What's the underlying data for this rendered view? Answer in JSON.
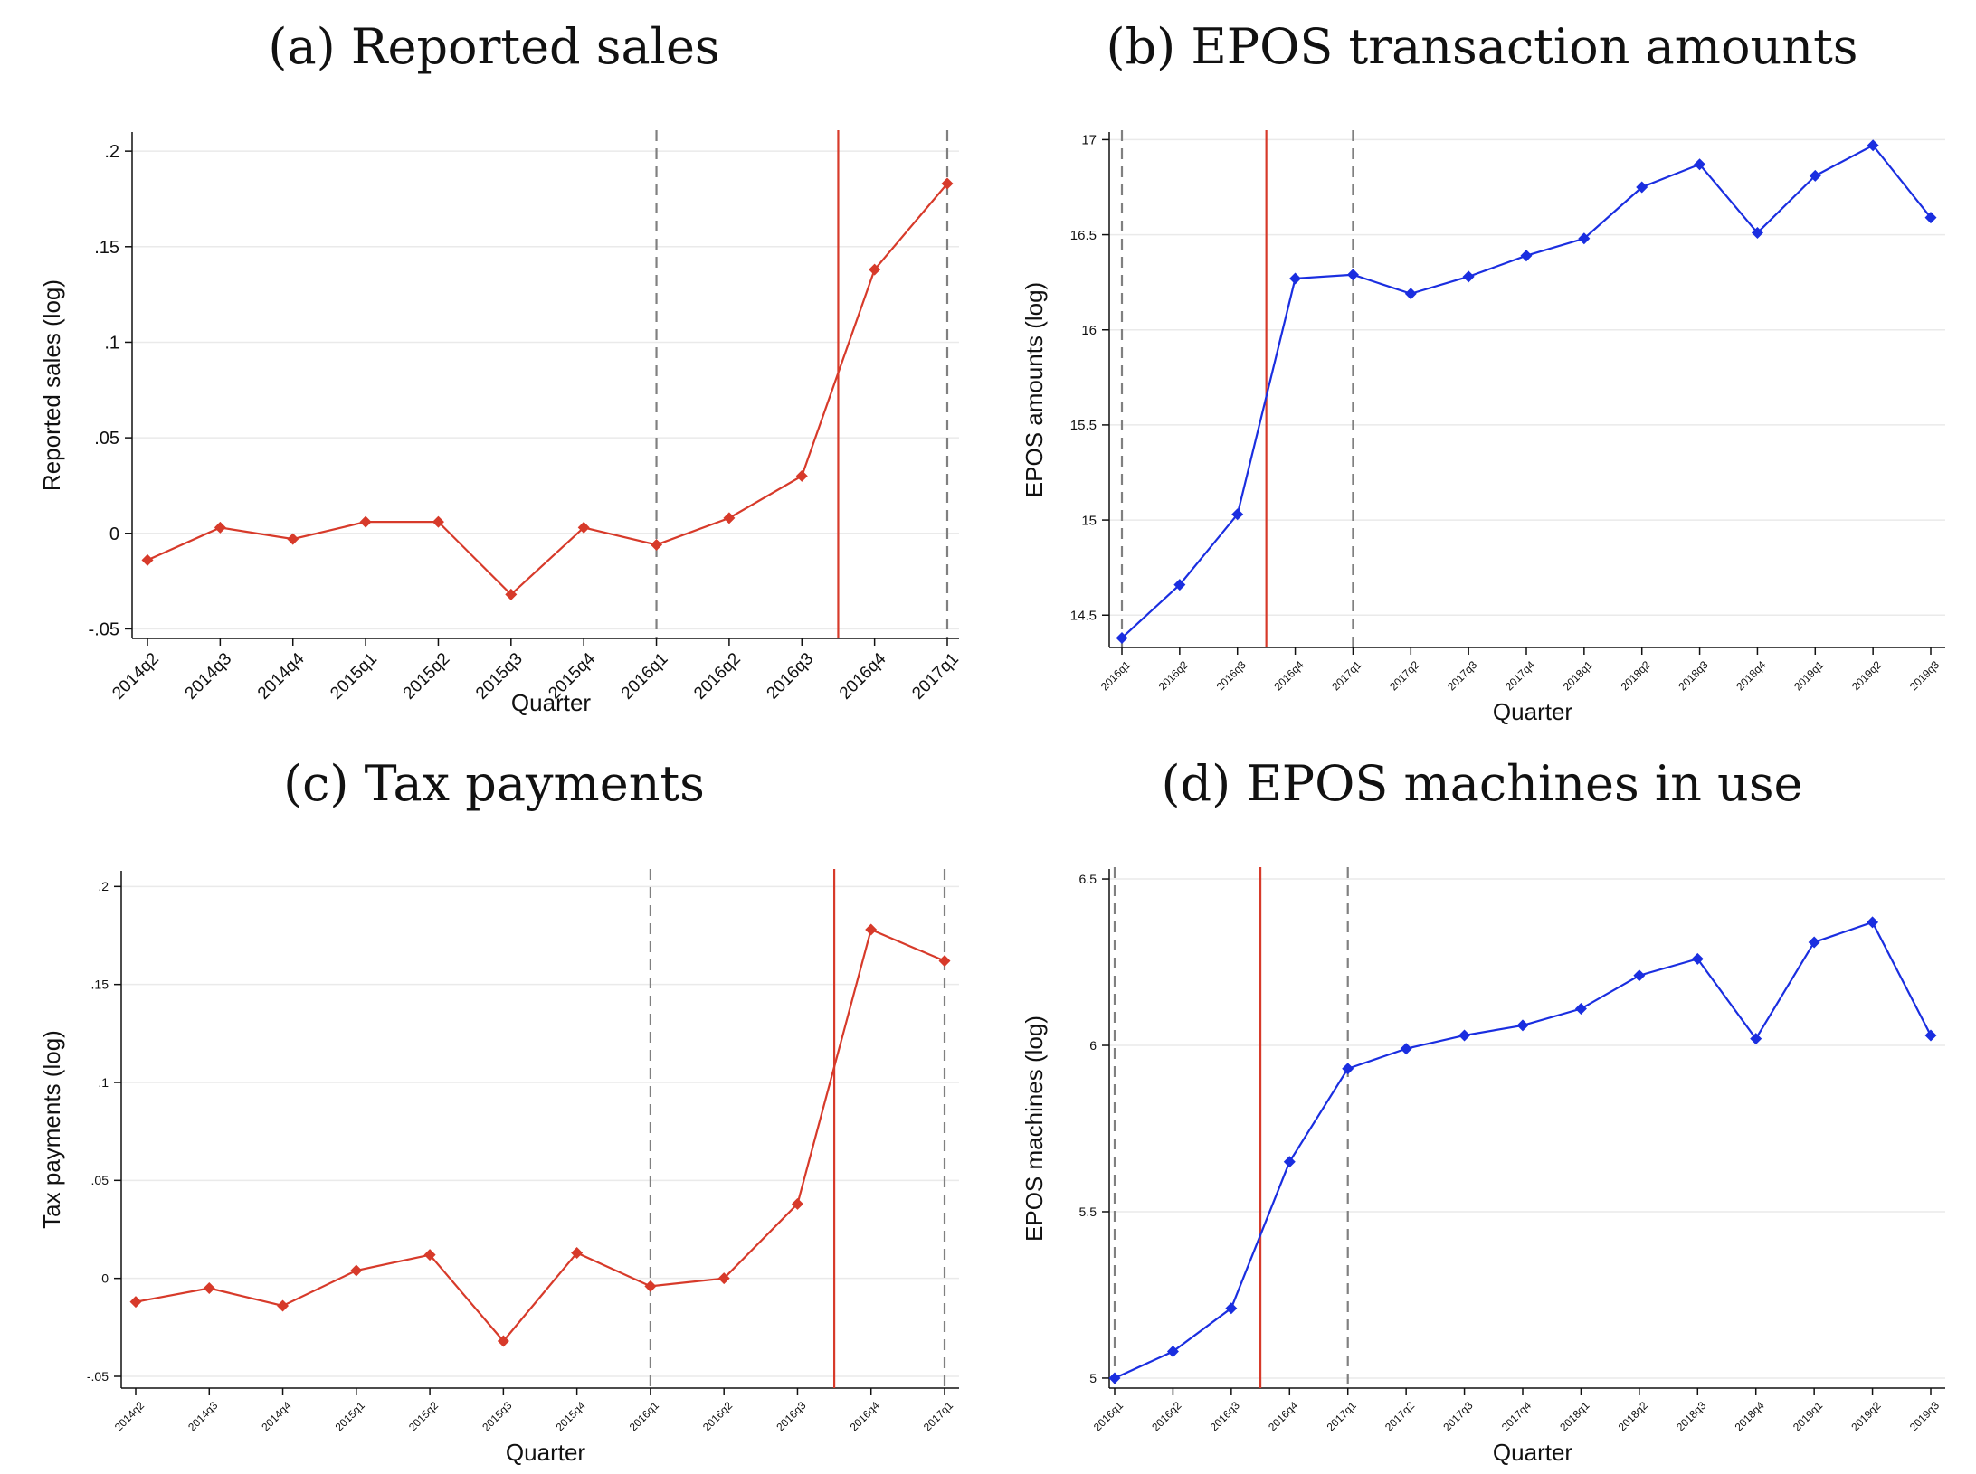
{
  "chart_data": [
    {
      "type": "line",
      "title": "(a) Reported sales",
      "xlabel": "Quarter",
      "ylabel": "Reported sales (log)",
      "categories": [
        "2014q2",
        "2014q3",
        "2014q4",
        "2015q1",
        "2015q2",
        "2015q3",
        "2015q4",
        "2016q1",
        "2016q2",
        "2016q3",
        "2016q4",
        "2017q1"
      ],
      "series": [
        {
          "values": [
            -0.014,
            0.003,
            -0.003,
            0.006,
            0.006,
            -0.032,
            0.003,
            -0.006,
            0.008,
            0.03,
            0.138,
            0.183
          ],
          "color": "#d73a2a"
        }
      ],
      "ylim": [
        -0.055,
        0.21
      ],
      "yticks": [
        -0.05,
        0,
        0.05,
        0.1,
        0.15,
        0.2
      ],
      "ytick_labels": [
        "-.05",
        "0",
        ".05",
        ".1",
        ".15",
        ".2"
      ],
      "vlines": [
        {
          "x": 7,
          "style": "dashed",
          "color": "#808080"
        },
        {
          "x": 9.5,
          "style": "solid",
          "color": "#d73a2a"
        },
        {
          "x": 11,
          "style": "dashed",
          "color": "#808080"
        }
      ],
      "grid": true
    },
    {
      "type": "line",
      "title": "(b) EPOS transaction amounts",
      "xlabel": "Quarter",
      "ylabel": "EPOS amounts (log)",
      "categories": [
        "2016q1",
        "2016q2",
        "2016q3",
        "2016q4",
        "2017q1",
        "2017q2",
        "2017q3",
        "2017q4",
        "2018q1",
        "2018q2",
        "2018q3",
        "2018q4",
        "2019q1",
        "2019q2",
        "2019q3"
      ],
      "series": [
        {
          "values": [
            14.38,
            14.66,
            15.03,
            16.27,
            16.29,
            16.19,
            16.28,
            16.39,
            16.48,
            16.75,
            16.87,
            16.51,
            16.81,
            16.97,
            16.59
          ],
          "color": "#1a2ee0"
        }
      ],
      "ylim": [
        14.33,
        17.04
      ],
      "yticks": [
        14.5,
        15,
        15.5,
        16,
        16.5,
        17
      ],
      "ytick_labels": [
        "14.5",
        "15",
        "15.5",
        "16",
        "16.5",
        "17"
      ],
      "vlines": [
        {
          "x": 0,
          "style": "dashed",
          "color": "#808080"
        },
        {
          "x": 2.5,
          "style": "solid",
          "color": "#d73a2a"
        },
        {
          "x": 4,
          "style": "dashed",
          "color": "#808080"
        }
      ],
      "grid": true
    },
    {
      "type": "line",
      "title": "(c) Tax payments",
      "xlabel": "Quarter",
      "ylabel": "Tax payments (log)",
      "categories": [
        "2014q2",
        "2014q3",
        "2014q4",
        "2015q1",
        "2015q2",
        "2015q3",
        "2015q4",
        "2016q1",
        "2016q2",
        "2016q3",
        "2016q4",
        "2017q1"
      ],
      "series": [
        {
          "values": [
            -0.012,
            -0.005,
            -0.014,
            0.004,
            0.012,
            -0.032,
            0.013,
            -0.004,
            0.0,
            0.038,
            0.178,
            0.162
          ],
          "color": "#d73a2a"
        }
      ],
      "ylim": [
        -0.056,
        0.208
      ],
      "yticks": [
        -0.05,
        0,
        0.05,
        0.1,
        0.15,
        0.2
      ],
      "ytick_labels": [
        "-.05",
        "0",
        ".05",
        ".1",
        ".15",
        ".2"
      ],
      "vlines": [
        {
          "x": 7,
          "style": "dashed",
          "color": "#808080"
        },
        {
          "x": 9.5,
          "style": "solid",
          "color": "#d73a2a"
        },
        {
          "x": 11,
          "style": "dashed",
          "color": "#808080"
        }
      ],
      "grid": true
    },
    {
      "type": "line",
      "title": "(d) EPOS machines in use",
      "xlabel": "Quarter",
      "ylabel": "EPOS machines (log)",
      "categories": [
        "2016q1",
        "2016q2",
        "2016q3",
        "2016q4",
        "2017q1",
        "2017q2",
        "2017q3",
        "2017q4",
        "2018q1",
        "2018q2",
        "2018q3",
        "2018q4",
        "2019q1",
        "2019q2",
        "2019q3"
      ],
      "series": [
        {
          "values": [
            5.0,
            5.08,
            5.21,
            5.65,
            5.93,
            5.99,
            6.03,
            6.06,
            6.11,
            6.21,
            6.26,
            6.02,
            6.31,
            6.37,
            6.03
          ],
          "color": "#1a2ee0"
        }
      ],
      "ylim": [
        4.97,
        6.53
      ],
      "yticks": [
        5,
        5.5,
        6,
        6.5
      ],
      "ytick_labels": [
        "5",
        "5.5",
        "6",
        "6.5"
      ],
      "vlines": [
        {
          "x": 0,
          "style": "dashed",
          "color": "#808080"
        },
        {
          "x": 2.5,
          "style": "solid",
          "color": "#d73a2a"
        },
        {
          "x": 4,
          "style": "dashed",
          "color": "#808080"
        }
      ],
      "grid": true
    }
  ]
}
